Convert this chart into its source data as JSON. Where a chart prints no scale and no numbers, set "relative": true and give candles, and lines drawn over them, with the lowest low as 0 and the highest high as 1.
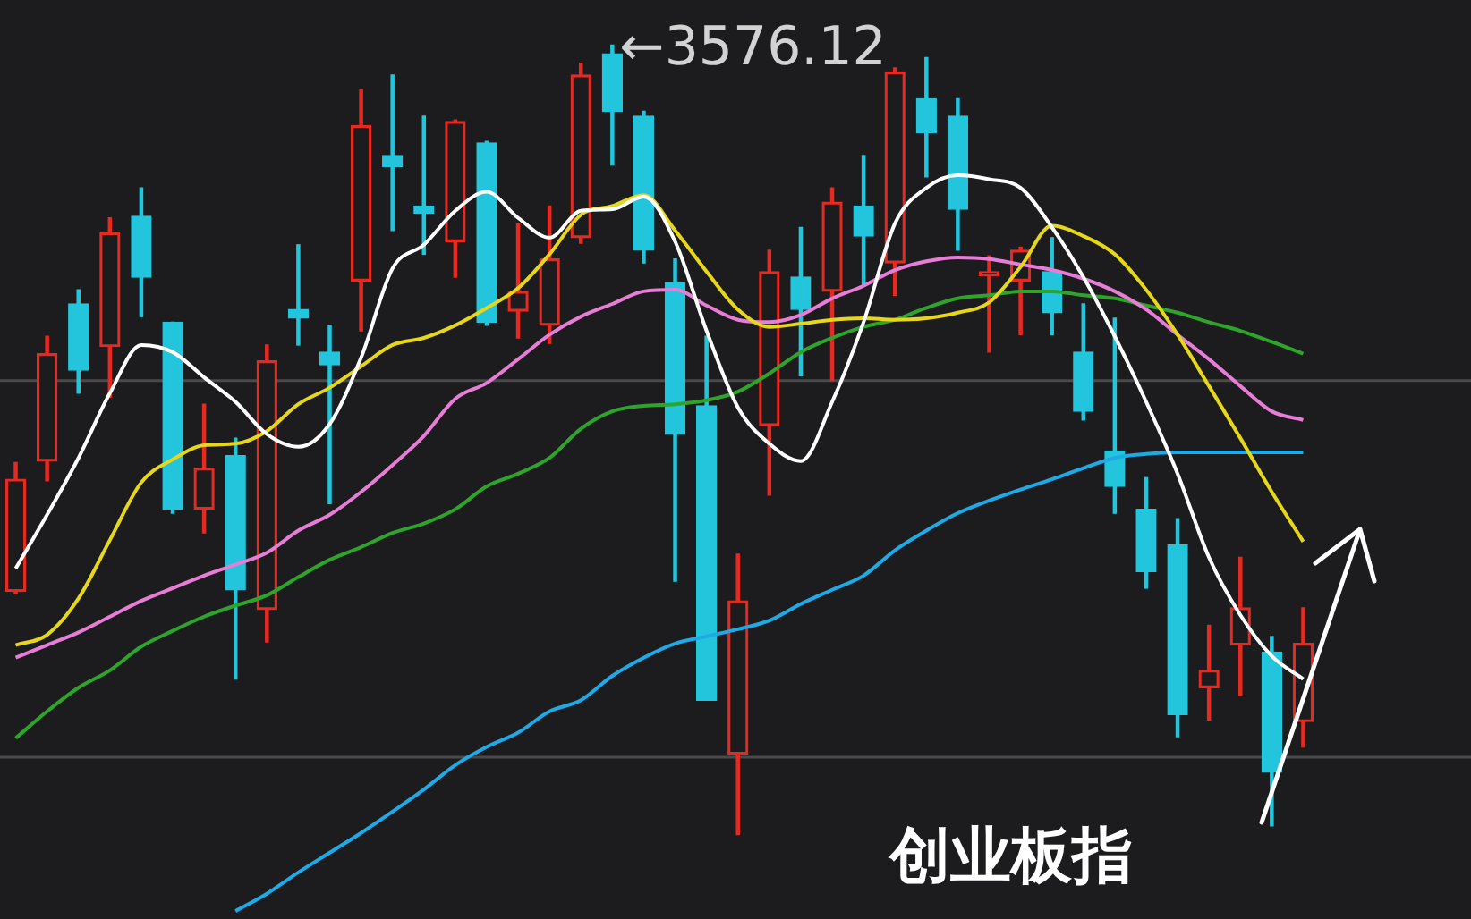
{
  "chart_data": {
    "type": "candlestick",
    "title": "创业板指",
    "relative": true,
    "categories": [
      null,
      null,
      null,
      null,
      null,
      null,
      null,
      null,
      null,
      null,
      null,
      null,
      null,
      null,
      null,
      null,
      null,
      null,
      null,
      null,
      null,
      null,
      null,
      null,
      null,
      null,
      null,
      null,
      null,
      null,
      null,
      null,
      null,
      null,
      null,
      null,
      null,
      null,
      null,
      null,
      null,
      null
    ],
    "ohlc": [
      [
        0.308,
        0.471,
        0.305,
        0.45
      ],
      [
        0.473,
        0.631,
        0.448,
        0.609
      ],
      [
        0.672,
        0.69,
        0.559,
        0.588
      ],
      [
        0.618,
        0.781,
        0.554,
        0.762
      ],
      [
        0.783,
        0.819,
        0.656,
        0.706
      ],
      [
        0.649,
        0.649,
        0.407,
        0.412
      ],
      [
        0.412,
        0.545,
        0.382,
        0.464
      ],
      [
        0.48,
        0.502,
        0.197,
        0.31
      ],
      [
        0.285,
        0.62,
        0.244,
        0.6
      ],
      [
        0.665,
        0.747,
        0.62,
        0.654
      ],
      [
        0.611,
        0.645,
        0.419,
        0.595
      ],
      [
        0.701,
        0.943,
        0.638,
        0.898
      ],
      [
        0.86,
        0.962,
        0.765,
        0.846
      ],
      [
        0.796,
        0.91,
        0.735,
        0.787
      ],
      [
        0.751,
        0.905,
        0.706,
        0.903
      ],
      [
        0.876,
        0.878,
        0.645,
        0.649
      ],
      [
        0.663,
        0.774,
        0.629,
        0.688
      ],
      [
        0.645,
        0.796,
        0.622,
        0.729
      ],
      [
        0.756,
        0.977,
        0.749,
        0.962
      ],
      [
        0.989,
        1,
        0.848,
        0.916
      ],
      [
        0.91,
        0.916,
        0.724,
        0.74
      ],
      [
        0.699,
        0.729,
        0.321,
        0.507
      ],
      [
        0.543,
        0.631,
        0.17,
        0.17
      ],
      [
        0.102,
        0.355,
        0,
        0.296
      ],
      [
        0.518,
        0.74,
        0.43,
        0.713
      ],
      [
        0.706,
        0.769,
        0.581,
        0.665
      ],
      [
        0.688,
        0.819,
        0.575,
        0.801
      ],
      [
        0.796,
        0.86,
        0.695,
        0.758
      ],
      [
        0.724,
        0.971,
        0.683,
        0.966
      ],
      [
        0.932,
        0.984,
        0.833,
        0.889
      ],
      [
        0.91,
        0.932,
        0.74,
        0.792
      ],
      [
        0.708,
        0.733,
        0.611,
        0.713
      ],
      [
        0.701,
        0.744,
        0.633,
        0.74
      ],
      [
        0.713,
        0.756,
        0.633,
        0.661
      ],
      [
        0.611,
        0.672,
        0.525,
        0.536
      ],
      [
        0.486,
        0.654,
        0.407,
        0.441
      ],
      [
        0.412,
        0.452,
        0.312,
        0.333
      ],
      [
        0.367,
        0.4,
        0.124,
        0.152
      ],
      [
        0.186,
        0.265,
        0.145,
        0.208
      ],
      [
        0.24,
        0.351,
        0.176,
        0.287
      ],
      [
        0.231,
        0.251,
        0.011,
        0.079
      ],
      [
        0.143,
        0.287,
        0.111,
        0.242
      ]
    ],
    "colors": [
      "#e8291f",
      "#e8291f",
      "#22c5dc",
      "#e8291f",
      "#22c5dc",
      "#22c5dc",
      "#e8291f",
      "#22c5dc",
      "#e8291f",
      "#22c5dc",
      "#22c5dc",
      "#e8291f",
      "#22c5dc",
      "#22c5dc",
      "#e8291f",
      "#22c5dc",
      "#e8291f",
      "#e8291f",
      "#e8291f",
      "#22c5dc",
      "#22c5dc",
      "#22c5dc",
      "#22c5dc",
      "#e8291f",
      "#e8291f",
      "#22c5dc",
      "#e8291f",
      "#22c5dc",
      "#e8291f",
      "#22c5dc",
      "#22c5dc",
      "#e8291f",
      "#e8291f",
      "#22c5dc",
      "#22c5dc",
      "#22c5dc",
      "#22c5dc",
      "#22c5dc",
      "#e8291f",
      "#e8291f",
      "#22c5dc",
      "#e8291f"
    ],
    "series": [
      {
        "type": "line",
        "color": "#ffffff",
        "values": [
          0.337,
          0.405,
          0.477,
          0.559,
          0.62,
          0.611,
          0.579,
          0.548,
          0.507,
          0.491,
          0.52,
          0.604,
          0.717,
          0.747,
          0.79,
          0.814,
          0.781,
          0.756,
          0.79,
          0.792,
          0.808,
          0.751,
          0.638,
          0.541,
          0.495,
          0.473,
          0.548,
          0.649,
          0.774,
          0.819,
          0.835,
          0.83,
          0.819,
          0.769,
          0.706,
          0.631,
          0.548,
          0.457,
          0.351,
          0.278,
          0.226,
          0.197
        ]
      },
      {
        "type": "line",
        "color": "#e6d61c",
        "values": [
          0.24,
          0.253,
          0.299,
          0.373,
          0.446,
          0.475,
          0.493,
          0.495,
          0.511,
          0.545,
          0.566,
          0.593,
          0.62,
          0.629,
          0.645,
          0.667,
          0.692,
          0.735,
          0.785,
          0.796,
          0.81,
          0.765,
          0.713,
          0.665,
          0.643,
          0.647,
          0.652,
          0.654,
          0.652,
          0.654,
          0.661,
          0.674,
          0.719,
          0.771,
          0.758,
          0.735,
          0.69,
          0.633,
          0.568,
          0.502,
          0.434,
          0.371
        ]
      },
      {
        "type": "line",
        "color": "#e77dd6",
        "values": [
          0.224,
          0.24,
          0.256,
          0.276,
          0.296,
          0.312,
          0.328,
          0.342,
          0.357,
          0.385,
          0.405,
          0.434,
          0.468,
          0.505,
          0.552,
          0.572,
          0.602,
          0.633,
          0.656,
          0.672,
          0.688,
          0.69,
          0.67,
          0.652,
          0.649,
          0.658,
          0.679,
          0.695,
          0.715,
          0.726,
          0.731,
          0.729,
          0.722,
          0.715,
          0.704,
          0.688,
          0.665,
          0.633,
          0.602,
          0.568,
          0.536,
          0.525
        ]
      },
      {
        "type": "line",
        "color": "#2ea52a",
        "values": [
          0.122,
          0.156,
          0.186,
          0.208,
          0.238,
          0.258,
          0.276,
          0.29,
          0.303,
          0.326,
          0.348,
          0.364,
          0.382,
          0.394,
          0.412,
          0.441,
          0.457,
          0.477,
          0.514,
          0.536,
          0.543,
          0.545,
          0.55,
          0.561,
          0.584,
          0.611,
          0.629,
          0.643,
          0.652,
          0.667,
          0.679,
          0.683,
          0.688,
          0.688,
          0.683,
          0.679,
          0.67,
          0.661,
          0.649,
          0.638,
          0.624,
          0.609
        ]
      },
      {
        "type": "line",
        "color": "#1eaae6",
        "values": [
          null,
          null,
          null,
          null,
          null,
          null,
          null,
          -0.097,
          -0.075,
          -0.048,
          -0.023,
          0.002,
          0.029,
          0.057,
          0.088,
          0.111,
          0.129,
          0.156,
          0.17,
          0.201,
          0.224,
          0.242,
          0.251,
          0.26,
          0.271,
          0.292,
          0.31,
          0.328,
          0.36,
          0.385,
          0.407,
          0.423,
          0.437,
          0.45,
          0.464,
          0.477,
          0.482,
          0.484,
          0.484,
          0.484,
          0.484,
          0.484
        ]
      }
    ],
    "ref_lines": [
      {
        "axis": "y",
        "value": 0.575,
        "color": "#4a4a4a"
      },
      {
        "axis": "y",
        "value": 0.098,
        "color": "#4a4a4a"
      }
    ],
    "annotations": [
      "←3576.12"
    ]
  }
}
